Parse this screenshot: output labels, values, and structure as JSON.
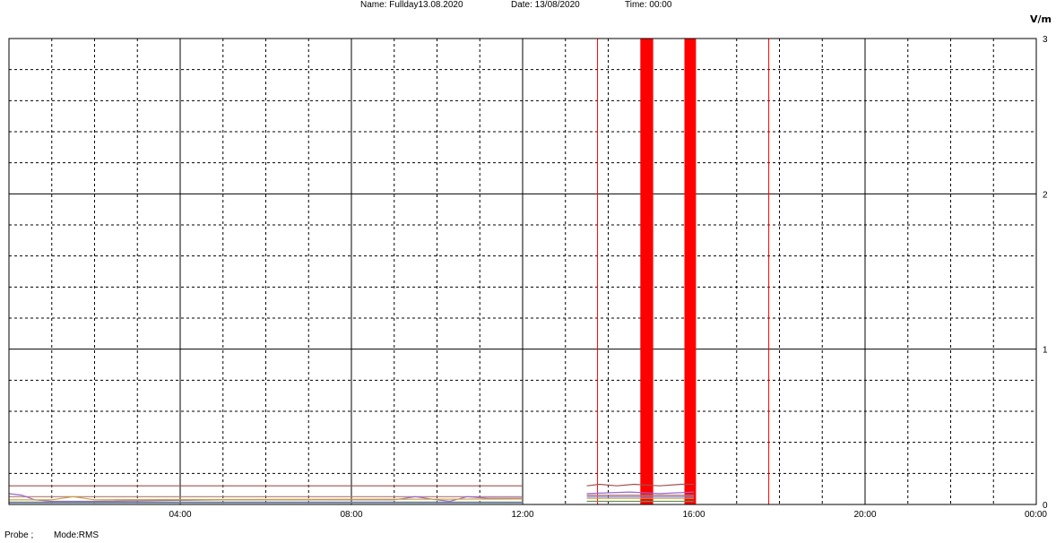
{
  "header": {
    "name": "Name: Fullday13.08.2020",
    "date": "Date: 13/08/2020",
    "time": "Time: 00:00"
  },
  "footer": {
    "probe": "Probe ;",
    "mode": "Mode:RMS"
  },
  "chart_data": {
    "type": "line",
    "title": "",
    "xlabel": "",
    "ylabel": "V/m",
    "x_unit": "hours",
    "xlim": [
      0,
      24
    ],
    "ylim": [
      0,
      3
    ],
    "grid": true,
    "x_ticks": [
      {
        "value": 4,
        "label": "04:00"
      },
      {
        "value": 8,
        "label": "08:00"
      },
      {
        "value": 12,
        "label": "12:00"
      },
      {
        "value": 16,
        "label": "16:00"
      },
      {
        "value": 20,
        "label": "20:00"
      },
      {
        "value": 24,
        "label": "00:00"
      }
    ],
    "y_ticks": [
      {
        "value": 0,
        "label": "0"
      },
      {
        "value": 1,
        "label": "1"
      },
      {
        "value": 2,
        "label": "2"
      },
      {
        "value": 3,
        "label": "3"
      }
    ],
    "markers": [
      {
        "x": 13.75,
        "color": "#ff0000",
        "kind": "line"
      },
      {
        "x": 17.75,
        "color": "#ff0000",
        "kind": "line"
      },
      {
        "x_start": 14.75,
        "x_end": 15.05,
        "color": "#ff0000",
        "kind": "band"
      },
      {
        "x_start": 15.78,
        "x_end": 16.05,
        "color": "#ff0000",
        "kind": "band"
      }
    ],
    "series": [
      {
        "color": "#a05050",
        "segments": [
          [
            [
              0,
              0.12
            ],
            [
              12,
              0.12
            ]
          ],
          [
            [
              13.5,
              0.12
            ],
            [
              13.8,
              0.13
            ],
            [
              14.2,
              0.12
            ],
            [
              14.6,
              0.13
            ],
            [
              15.2,
              0.12
            ],
            [
              15.7,
              0.13
            ],
            [
              16,
              0.13
            ]
          ]
        ]
      },
      {
        "color": "#b07878",
        "segments": [
          [
            [
              0,
              0.05
            ],
            [
              12,
              0.05
            ]
          ],
          [
            [
              13.5,
              0.06
            ],
            [
              16,
              0.06
            ]
          ]
        ]
      },
      {
        "color": "#9966cc",
        "segments": [
          [
            [
              0,
              0.07
            ],
            [
              0.3,
              0.06
            ],
            [
              0.6,
              0.03
            ],
            [
              1,
              0.02
            ],
            [
              2,
              0.02
            ],
            [
              5,
              0.03
            ],
            [
              9,
              0.03
            ],
            [
              9.5,
              0.05
            ],
            [
              10,
              0.03
            ],
            [
              10.3,
              0.02
            ],
            [
              10.7,
              0.05
            ],
            [
              11.2,
              0.04
            ],
            [
              12,
              0.04
            ]
          ],
          [
            [
              13.5,
              0.07
            ],
            [
              14.5,
              0.08
            ],
            [
              15.2,
              0.07
            ],
            [
              16,
              0.08
            ]
          ]
        ]
      },
      {
        "color": "#c8a040",
        "segments": [
          [
            [
              0,
              0.03
            ],
            [
              1,
              0.03
            ],
            [
              1.5,
              0.05
            ],
            [
              2,
              0.03
            ],
            [
              12,
              0.035
            ]
          ],
          [
            [
              13.5,
              0.04
            ],
            [
              16,
              0.04
            ]
          ]
        ]
      },
      {
        "color": "#8080e0",
        "segments": [
          [
            [
              0,
              0.01
            ],
            [
              12,
              0.01
            ]
          ],
          [
            [
              13.5,
              0.05
            ],
            [
              16,
              0.05
            ]
          ]
        ]
      },
      {
        "color": "#6b8e5a",
        "segments": [
          [
            [
              0,
              0.015
            ],
            [
              12,
              0.015
            ]
          ],
          [
            [
              13.5,
              0.02
            ],
            [
              16,
              0.02
            ]
          ]
        ]
      }
    ]
  }
}
